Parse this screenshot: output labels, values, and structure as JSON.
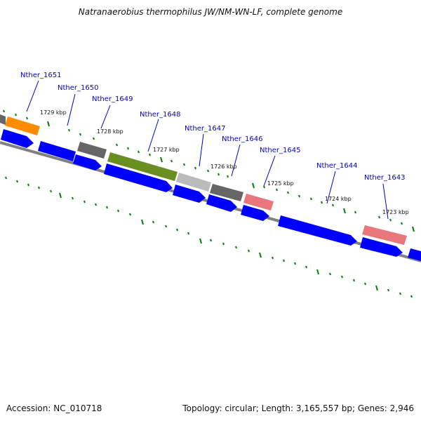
{
  "title": "Natranaerobius thermophilus JW/NM-WN-LF, complete genome",
  "accession": "Accession: NC_010718",
  "summary": "Topology: circular; Length: 3,165,557 bp; Genes: 2,946",
  "colors": {
    "cds": "#0000ff",
    "backbone": "#808080",
    "ticks": "#008000",
    "orange": "#ff8c00",
    "darkgray": "#666666",
    "lightgray": "#bbbbbb",
    "olive": "#6b8e23",
    "salmon": "#e9767a",
    "label": "#0000cc"
  },
  "gene_labels": [
    "Nther_1651",
    "Nther_1650",
    "Nther_1649",
    "Nther_1648",
    "Nther_1647",
    "Nther_1646",
    "Nther_1645",
    "Nther_1644",
    "Nther_1643"
  ],
  "kbp_labels": [
    "1729 kbp",
    "1728 kbp",
    "1727 kbp",
    "1726 kbp",
    "1725 kbp",
    "1724 kbp",
    "1723 kbp"
  ]
}
